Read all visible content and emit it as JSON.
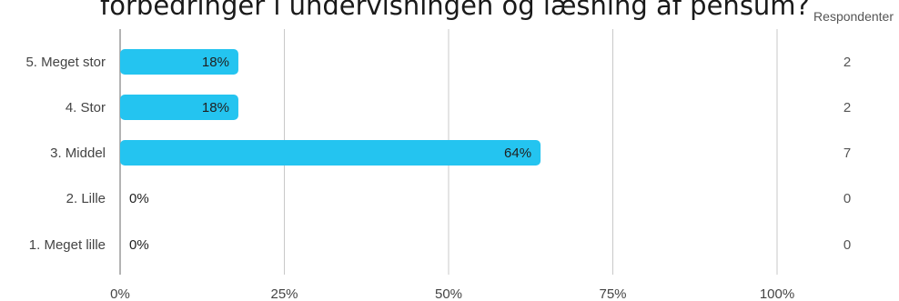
{
  "chart_title": "forbedringer i undervisningen og læsning af pensum?",
  "respondents_header": "Respondenter",
  "bar_color": "#24c4f0",
  "grid_color": "#c8c8c8",
  "chart_data": {
    "type": "bar",
    "orientation": "horizontal",
    "title": "forbedringer i undervisningen og læsning af pensum?",
    "categories": [
      "5. Meget stor",
      "4. Stor",
      "3. Middel",
      "2. Lille",
      "1. Meget lille"
    ],
    "values": [
      18,
      18,
      64,
      0,
      0
    ],
    "value_labels": [
      "18%",
      "18%",
      "64%",
      "0%",
      "0%"
    ],
    "respondents": [
      2,
      2,
      7,
      0,
      0
    ],
    "xlim": [
      0,
      100
    ],
    "xticks": [
      "0%",
      "25%",
      "50%",
      "75%",
      "100%"
    ],
    "grid": true
  }
}
